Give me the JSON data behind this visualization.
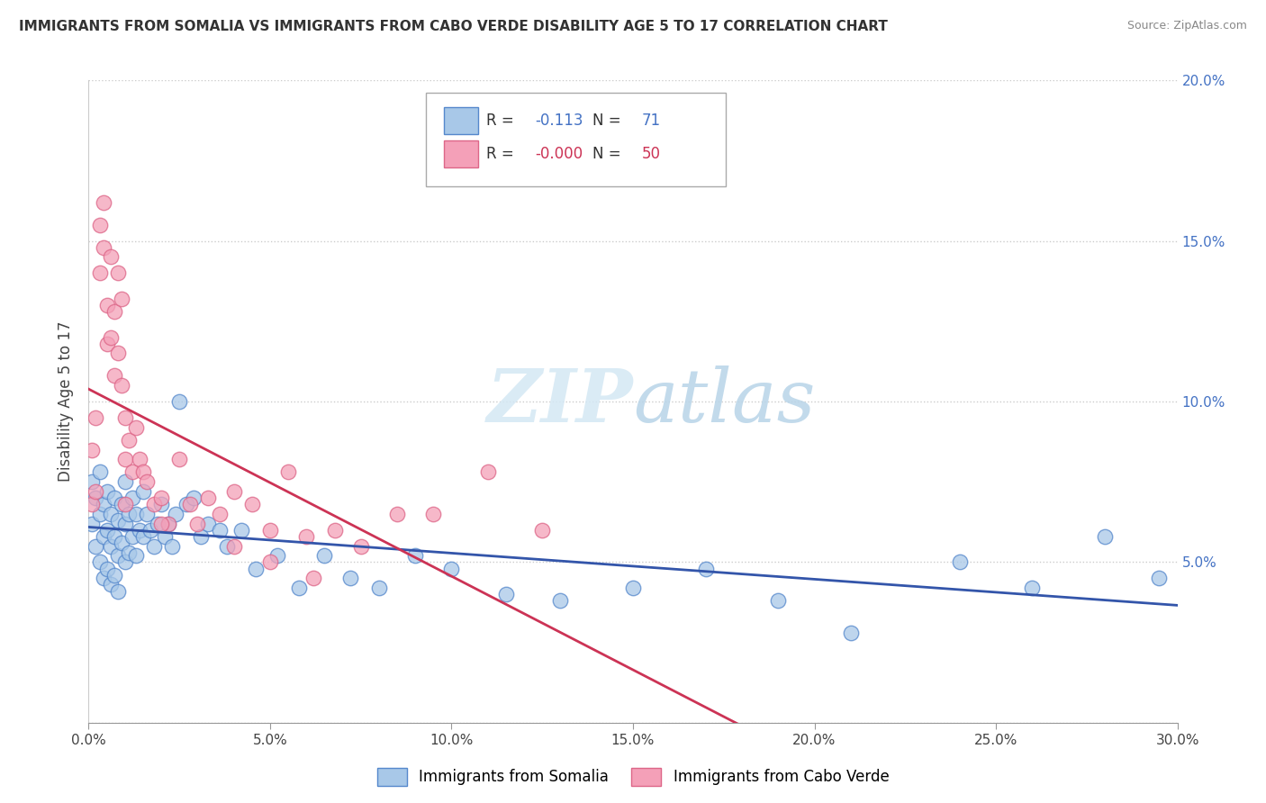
{
  "title": "IMMIGRANTS FROM SOMALIA VS IMMIGRANTS FROM CABO VERDE DISABILITY AGE 5 TO 17 CORRELATION CHART",
  "source": "Source: ZipAtlas.com",
  "ylabel": "Disability Age 5 to 17",
  "xlim": [
    0.0,
    0.3
  ],
  "ylim": [
    0.0,
    0.2
  ],
  "xticks": [
    0.0,
    0.05,
    0.1,
    0.15,
    0.2,
    0.25,
    0.3
  ],
  "yticks": [
    0.0,
    0.05,
    0.1,
    0.15,
    0.2
  ],
  "xtick_labels": [
    "0.0%",
    "5.0%",
    "10.0%",
    "15.0%",
    "20.0%",
    "25.0%",
    "30.0%"
  ],
  "right_ytick_labels": [
    "5.0%",
    "10.0%",
    "15.0%",
    "20.0%"
  ],
  "somalia_color": "#a8c8e8",
  "caboverde_color": "#f4a0b8",
  "somalia_edge": "#5588cc",
  "caboverde_edge": "#dd6688",
  "somalia_R": -0.113,
  "somalia_N": 71,
  "caboverde_R": -0.0,
  "caboverde_N": 50,
  "background_color": "#ffffff",
  "grid_color": "#cccccc",
  "watermark_color": "#d4e8f4",
  "somalia_line_color": "#3355aa",
  "caboverde_line_color": "#cc3355",
  "somalia_scatter_x": [
    0.001,
    0.001,
    0.002,
    0.002,
    0.003,
    0.003,
    0.003,
    0.004,
    0.004,
    0.004,
    0.005,
    0.005,
    0.005,
    0.006,
    0.006,
    0.006,
    0.007,
    0.007,
    0.007,
    0.008,
    0.008,
    0.008,
    0.009,
    0.009,
    0.01,
    0.01,
    0.01,
    0.011,
    0.011,
    0.012,
    0.012,
    0.013,
    0.013,
    0.014,
    0.015,
    0.015,
    0.016,
    0.017,
    0.018,
    0.019,
    0.02,
    0.021,
    0.022,
    0.023,
    0.024,
    0.025,
    0.027,
    0.029,
    0.031,
    0.033,
    0.036,
    0.038,
    0.042,
    0.046,
    0.052,
    0.058,
    0.065,
    0.072,
    0.08,
    0.09,
    0.1,
    0.115,
    0.13,
    0.15,
    0.17,
    0.19,
    0.21,
    0.24,
    0.26,
    0.28,
    0.295
  ],
  "somalia_scatter_y": [
    0.075,
    0.062,
    0.07,
    0.055,
    0.078,
    0.065,
    0.05,
    0.068,
    0.058,
    0.045,
    0.072,
    0.06,
    0.048,
    0.065,
    0.055,
    0.043,
    0.07,
    0.058,
    0.046,
    0.063,
    0.052,
    0.041,
    0.068,
    0.056,
    0.075,
    0.062,
    0.05,
    0.065,
    0.053,
    0.07,
    0.058,
    0.065,
    0.052,
    0.06,
    0.072,
    0.058,
    0.065,
    0.06,
    0.055,
    0.062,
    0.068,
    0.058,
    0.062,
    0.055,
    0.065,
    0.1,
    0.068,
    0.07,
    0.058,
    0.062,
    0.06,
    0.055,
    0.06,
    0.048,
    0.052,
    0.042,
    0.052,
    0.045,
    0.042,
    0.052,
    0.048,
    0.04,
    0.038,
    0.042,
    0.048,
    0.038,
    0.028,
    0.05,
    0.042,
    0.058,
    0.045
  ],
  "caboverde_scatter_x": [
    0.001,
    0.001,
    0.002,
    0.002,
    0.003,
    0.003,
    0.004,
    0.004,
    0.005,
    0.005,
    0.006,
    0.006,
    0.007,
    0.007,
    0.008,
    0.008,
    0.009,
    0.009,
    0.01,
    0.01,
    0.011,
    0.012,
    0.013,
    0.014,
    0.015,
    0.016,
    0.018,
    0.02,
    0.022,
    0.025,
    0.028,
    0.03,
    0.033,
    0.036,
    0.04,
    0.045,
    0.05,
    0.055,
    0.06,
    0.068,
    0.075,
    0.085,
    0.095,
    0.11,
    0.125,
    0.04,
    0.05,
    0.062,
    0.01,
    0.02
  ],
  "caboverde_scatter_y": [
    0.085,
    0.068,
    0.095,
    0.072,
    0.155,
    0.14,
    0.162,
    0.148,
    0.13,
    0.118,
    0.145,
    0.12,
    0.128,
    0.108,
    0.14,
    0.115,
    0.132,
    0.105,
    0.095,
    0.082,
    0.088,
    0.078,
    0.092,
    0.082,
    0.078,
    0.075,
    0.068,
    0.07,
    0.062,
    0.082,
    0.068,
    0.062,
    0.07,
    0.065,
    0.072,
    0.068,
    0.06,
    0.078,
    0.058,
    0.06,
    0.055,
    0.065,
    0.065,
    0.078,
    0.06,
    0.055,
    0.05,
    0.045,
    0.068,
    0.062
  ]
}
